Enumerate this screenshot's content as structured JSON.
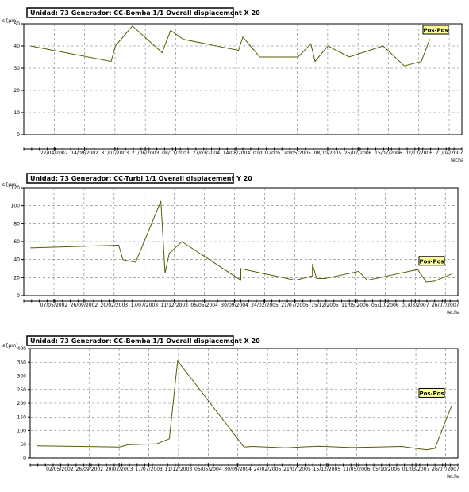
{
  "chart_data": [
    {
      "type": "line",
      "title": "Unidad: 73 Generador: CC-Bomba 1/1 Overall displacement X 20",
      "ylabel": "s [µm]",
      "xlabel": "fecha",
      "ylim": [
        0,
        50
      ],
      "yticks": [
        0,
        10,
        20,
        30,
        40,
        50
      ],
      "xticks": [
        "27/04/2002",
        "14/09/2002",
        "31/01/2003",
        "21/06/2003",
        "08/11/2003",
        "27/03/2004",
        "14/08/2004",
        "01/01/2005",
        "20/05/2005",
        "08/10/2005",
        "25/02/2006",
        "15/07/2006",
        "02/12/2006",
        "21/04/2007"
      ],
      "legend": "Pos-Pos",
      "grid": true,
      "x": [
        0,
        0.19,
        0.2,
        0.24,
        0.31,
        0.33,
        0.36,
        0.49,
        0.5,
        0.54,
        0.63,
        0.66,
        0.67,
        0.7,
        0.75,
        0.83,
        0.88,
        0.92,
        0.94
      ],
      "values": [
        40,
        33,
        40,
        49,
        37,
        47,
        43,
        38,
        44,
        35,
        35,
        41,
        33,
        40,
        35,
        40,
        31,
        33,
        43
      ]
    },
    {
      "type": "line",
      "title": "Unidad: 73 Generador: CC-Turbi 1/1 Overall displacement Y 20",
      "ylabel": "s [µm]",
      "xlabel": "fecha",
      "ylim": [
        0,
        120
      ],
      "yticks": [
        0,
        20,
        40,
        60,
        80,
        100,
        120
      ],
      "xticks": [
        "07/05/2002",
        "26/09/2002",
        "20/02/2003",
        "17/07/2003",
        "11/12/2003",
        "06/05/2004",
        "30/09/2004",
        "24/02/2005",
        "21/07/2005",
        "15/12/2005",
        "11/05/2006",
        "05/10/2006",
        "01/03/2007",
        "26/07/2007"
      ],
      "legend": "Pos-Pos",
      "grid": true,
      "x": [
        0,
        0.21,
        0.22,
        0.25,
        0.31,
        0.32,
        0.33,
        0.36,
        0.5,
        0.5,
        0.55,
        0.63,
        0.67,
        0.67,
        0.68,
        0.7,
        0.78,
        0.8,
        0.92,
        0.94,
        0.96,
        1
      ],
      "values": [
        53,
        56,
        40,
        37,
        105,
        25,
        47,
        60,
        17,
        30,
        25,
        17,
        22,
        35,
        19,
        19,
        27,
        17,
        29,
        15,
        16,
        24
      ]
    },
    {
      "type": "line",
      "title": "Unidad: 73 Generador: CC-Bomba 1/1 Overall displacement X 20",
      "ylabel": "s [µm]",
      "xlabel": "fecha",
      "ylim": [
        0,
        400
      ],
      "yticks": [
        0,
        50,
        100,
        150,
        200,
        250,
        300,
        350,
        400
      ],
      "xticks": [
        "02/05/2002",
        "26/09/2002",
        "20/02/2003",
        "17/07/2003",
        "11/12/2003",
        "06/05/2004",
        "30/09/2004",
        "24/02/2005",
        "21/07/2005",
        "15/12/2005",
        "11/05/2006",
        "05/10/2006",
        "01/03/2007",
        "26/07/2007"
      ],
      "legend": "Pos-Pos",
      "grid": true,
      "x": [
        0,
        0.2,
        0.22,
        0.29,
        0.32,
        0.34,
        0.5,
        0.52,
        0.6,
        0.68,
        0.76,
        0.82,
        0.88,
        0.94,
        0.96,
        1
      ],
      "values": [
        44,
        40,
        48,
        52,
        70,
        355,
        40,
        42,
        37,
        43,
        38,
        40,
        42,
        30,
        35,
        190
      ]
    }
  ]
}
